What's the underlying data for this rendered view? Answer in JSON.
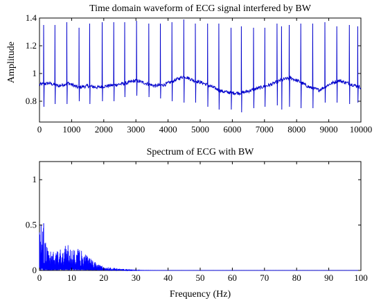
{
  "chart_data": [
    {
      "type": "line",
      "title": "Time domain waveform of ECG signal interfered by BW",
      "xlabel": "",
      "ylabel": "Amplitude",
      "xlim": [
        0,
        10000
      ],
      "ylim": [
        0.65,
        1.4
      ],
      "x_ticks": [
        0,
        1000,
        2000,
        3000,
        4000,
        5000,
        6000,
        7000,
        8000,
        9000,
        10000
      ],
      "x_tick_labels": [
        "0",
        "1000",
        "2000",
        "3000",
        "4000",
        "5000",
        "6000",
        "7000",
        "8000",
        "9000",
        "10000"
      ],
      "y_ticks": [
        0.8,
        1.0,
        1.2,
        1.4
      ],
      "y_tick_labels": [
        "0.8",
        "1",
        "1.2",
        "1.4"
      ],
      "line_color": "#0000cc",
      "series": [
        {
          "baseline_points": [
            [
              0,
              0.92
            ],
            [
              300,
              0.93
            ],
            [
              600,
              0.91
            ],
            [
              900,
              0.93
            ],
            [
              1200,
              0.9
            ],
            [
              1500,
              0.91
            ],
            [
              1800,
              0.9
            ],
            [
              2100,
              0.91
            ],
            [
              2400,
              0.92
            ],
            [
              2700,
              0.93
            ],
            [
              3000,
              0.95
            ],
            [
              3300,
              0.93
            ],
            [
              3600,
              0.91
            ],
            [
              3900,
              0.92
            ],
            [
              4200,
              0.95
            ],
            [
              4500,
              0.98
            ],
            [
              4800,
              0.95
            ],
            [
              5100,
              0.93
            ],
            [
              5400,
              0.9
            ],
            [
              5700,
              0.87
            ],
            [
              6000,
              0.86
            ],
            [
              6300,
              0.86
            ],
            [
              6600,
              0.88
            ],
            [
              6900,
              0.9
            ],
            [
              7200,
              0.92
            ],
            [
              7500,
              0.95
            ],
            [
              7800,
              0.97
            ],
            [
              8100,
              0.94
            ],
            [
              8400,
              0.9
            ],
            [
              8700,
              0.88
            ],
            [
              9000,
              0.92
            ],
            [
              9300,
              0.95
            ],
            [
              9600,
              0.93
            ],
            [
              10000,
              0.9
            ]
          ],
          "peaks": [
            [
              130,
              1.35,
              0.76
            ],
            [
              480,
              1.35,
              0.78
            ],
            [
              850,
              1.37,
              0.78
            ],
            [
              1230,
              1.33,
              0.8
            ],
            [
              1560,
              1.36,
              0.78
            ],
            [
              1950,
              1.37,
              0.8
            ],
            [
              2310,
              1.37,
              0.8
            ],
            [
              2650,
              1.37,
              0.83
            ],
            [
              3020,
              1.38,
              0.84
            ],
            [
              3400,
              1.36,
              0.83
            ],
            [
              3760,
              1.36,
              0.82
            ],
            [
              4120,
              1.37,
              0.8
            ],
            [
              4490,
              1.39,
              0.79
            ],
            [
              4850,
              1.36,
              0.79
            ],
            [
              5230,
              1.36,
              0.76
            ],
            [
              5580,
              1.36,
              0.74
            ],
            [
              5960,
              1.33,
              0.74
            ],
            [
              6280,
              1.34,
              0.72
            ],
            [
              6660,
              1.33,
              0.75
            ],
            [
              7010,
              1.33,
              0.76
            ],
            [
              7390,
              1.36,
              0.77
            ],
            [
              7530,
              1.34,
              0.74
            ],
            [
              7770,
              1.35,
              0.76
            ],
            [
              8130,
              1.36,
              0.75
            ],
            [
              8500,
              1.36,
              0.75
            ],
            [
              8880,
              1.37,
              0.79
            ],
            [
              9250,
              1.34,
              0.79
            ],
            [
              9640,
              1.35,
              0.78
            ],
            [
              9900,
              1.34,
              0.79
            ]
          ]
        }
      ]
    },
    {
      "type": "line",
      "title": "Spectrum of ECG with BW",
      "xlabel": "Frequency (Hz)",
      "ylabel": "",
      "xlim": [
        0,
        100
      ],
      "ylim": [
        0,
        1.2
      ],
      "x_ticks": [
        0,
        10,
        20,
        30,
        40,
        50,
        60,
        70,
        80,
        90,
        100
      ],
      "x_tick_labels": [
        "0",
        "10",
        "20",
        "30",
        "40",
        "50",
        "60",
        "70",
        "80",
        "90",
        "100"
      ],
      "y_ticks": [
        0,
        0.5,
        1
      ],
      "y_tick_labels": [
        "0",
        "0.5",
        "1"
      ],
      "line_color": "#0000ff",
      "series": [
        {
          "envelope": [
            [
              0,
              0.5
            ],
            [
              1,
              0.52
            ],
            [
              2,
              0.3
            ],
            [
              3,
              0.22
            ],
            [
              4,
              0.2
            ],
            [
              5,
              0.22
            ],
            [
              6,
              0.25
            ],
            [
              7,
              0.27
            ],
            [
              8,
              0.28
            ],
            [
              9,
              0.28
            ],
            [
              10,
              0.27
            ],
            [
              11,
              0.26
            ],
            [
              12,
              0.24
            ],
            [
              13,
              0.23
            ],
            [
              14,
              0.2
            ],
            [
              15,
              0.17
            ],
            [
              16,
              0.13
            ],
            [
              17,
              0.1
            ],
            [
              18,
              0.08
            ],
            [
              19,
              0.06
            ],
            [
              20,
              0.05
            ],
            [
              22,
              0.035
            ],
            [
              24,
              0.025
            ],
            [
              26,
              0.018
            ],
            [
              28,
              0.012
            ],
            [
              30,
              0.006
            ],
            [
              32,
              0.003
            ],
            [
              35,
              0.0015
            ],
            [
              40,
              0.0008
            ],
            [
              100,
              0.0004
            ]
          ],
          "spikes": [
            [
              0.5,
              0.5
            ],
            [
              1.3,
              0.52
            ]
          ]
        }
      ]
    }
  ]
}
